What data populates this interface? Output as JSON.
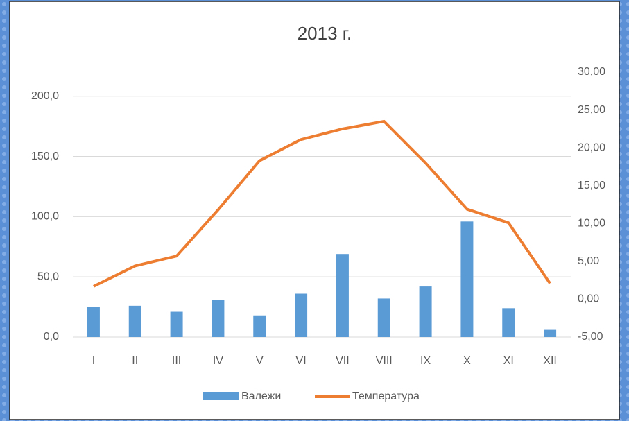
{
  "chart_data": {
    "type": "bar",
    "title": "2013 г.",
    "categories": [
      "I",
      "II",
      "III",
      "IV",
      "V",
      "VI",
      "VII",
      "VIII",
      "IX",
      "X",
      "XI",
      "XII"
    ],
    "series": [
      {
        "name": "Валежи",
        "type": "bar",
        "color": "#5b9bd5",
        "values": [
          25,
          26,
          21,
          31,
          18,
          36,
          69,
          32,
          42,
          96,
          24,
          6
        ]
      },
      {
        "name": "Температура",
        "type": "line",
        "axis": "y2",
        "color": "#ed7d31",
        "values": [
          1.7,
          4.4,
          5.7,
          11.8,
          18.3,
          21.1,
          22.5,
          23.5,
          18.0,
          11.9,
          10.1,
          2.1
        ]
      }
    ],
    "ylim": [
      0,
      220
    ],
    "yticks": [
      {
        "value": 0,
        "label": "0,0"
      },
      {
        "value": 50,
        "label": "50,0"
      },
      {
        "value": 100,
        "label": "100,0"
      },
      {
        "value": 150,
        "label": "150,0"
      },
      {
        "value": 200,
        "label": "200,0"
      }
    ],
    "y2lim": [
      -5,
      30
    ],
    "y2ticks": [
      {
        "value": -5,
        "label": "-5,00"
      },
      {
        "value": 0,
        "label": "0,00"
      },
      {
        "value": 5,
        "label": "5,00"
      },
      {
        "value": 10,
        "label": "10,00"
      },
      {
        "value": 15,
        "label": "15,00"
      },
      {
        "value": 20,
        "label": "20,00"
      },
      {
        "value": 25,
        "label": "25,00"
      },
      {
        "value": 30,
        "label": "30,00"
      }
    ],
    "grid": true,
    "legend": "bottom"
  }
}
